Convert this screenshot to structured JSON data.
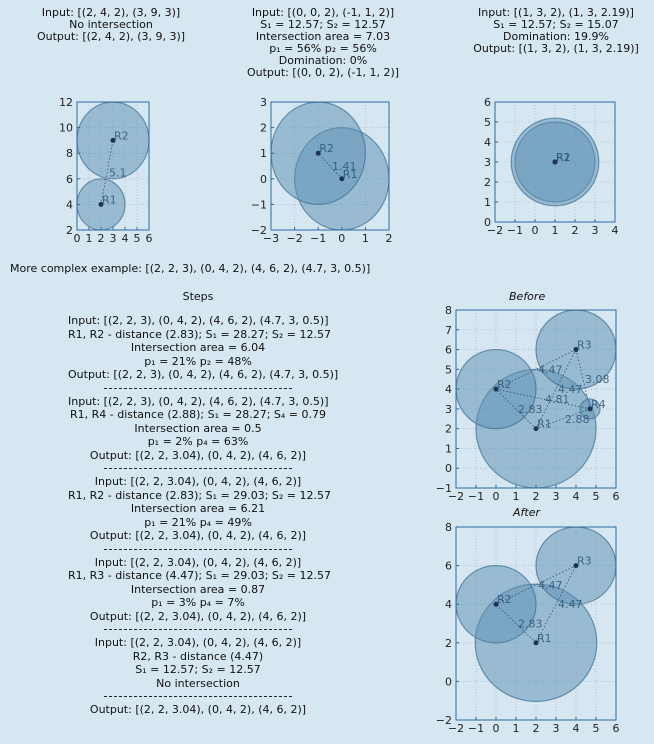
{
  "top_examples": [
    {
      "lines": [
        "Input: [(2, 4, 2), (3, 9, 3)]",
        "No intersection",
        "Output: [(2, 4, 2), (3, 9, 3)]"
      ]
    },
    {
      "lines": [
        "Input: [(0, 0, 2), (-1, 1, 2)]",
        "S₁ = 12.57; S₂ = 12.57",
        "Intersection area = 7.03",
        "p₁ = 56% p₂ = 56%",
        "Domination: 0%",
        "Output: [(0, 0, 2), (-1, 1, 2)]"
      ]
    },
    {
      "lines": [
        "Input: [(1, 3, 2), (1, 3, 2.19)]",
        "S₁ = 12.57; S₂ = 15.07",
        "Domination: 19.9%",
        "Output: [(1, 3, 2), (1, 3, 2.19)]"
      ]
    }
  ],
  "complex_example_label": "More complex example: [(2, 2, 3), (0, 4, 2), (4, 6, 2), (4.7, 3, 0.5)]",
  "steps_title": "Steps",
  "steps": [
    {
      "lines": [
        "Input: [(2, 2, 3), (0, 4, 2), (4, 6, 2), (4.7, 3, 0.5)]",
        "R1, R2 - distance (2.83); S₁ = 28.27; S₂ = 12.57",
        "Intersection area = 6.04",
        "p₁ = 21% p₂ = 48%",
        "Output: [(2, 2, 3), (0, 4, 2), (4, 6, 2), (4.7, 3, 0.5)]"
      ]
    },
    {
      "lines": [
        "Input: [(2, 2, 3), (0, 4, 2), (4, 6, 2), (4.7, 3, 0.5)]",
        "R1, R4 - distance (2.88); S₁ = 28.27; S₄ = 0.79",
        "Intersection area = 0.5",
        "p₁ = 2% p₄ = 63%",
        "Output: [(2, 2, 3.04), (0, 4, 2), (4, 6, 2)]"
      ]
    },
    {
      "lines": [
        "Input: [(2, 2, 3.04), (0, 4, 2), (4, 6, 2)]",
        "R1, R2 - distance (2.83); S₁ = 29.03; S₂ = 12.57",
        "Intersection area = 6.21",
        "p₁ = 21% p₄ = 49%",
        "Output: [(2, 2, 3.04), (0, 4, 2), (4, 6, 2)]"
      ]
    },
    {
      "lines": [
        "Input: [(2, 2, 3.04), (0, 4, 2), (4, 6, 2)]",
        "R1, R3 - distance (4.47); S₁ = 29.03; S₂ = 12.57",
        "Intersection area = 0.87",
        "p₁ = 3% p₄ = 7%",
        "Output: [(2, 2, 3.04), (0, 4, 2), (4, 6, 2)]"
      ]
    },
    {
      "lines": [
        "Input: [(2, 2, 3.04), (0, 4, 2), (4, 6, 2)]",
        "R2, R3 - distance (4.47)",
        "S₁ = 12.57; S₂ = 12.57",
        "No intersection"
      ]
    },
    {
      "lines": [
        "Output: [(2, 2, 3.04), (0, 4, 2), (4, 6, 2)]"
      ]
    }
  ],
  "before_title": "Before",
  "after_title": "After",
  "colors": {
    "circle_fill": "#5b8fb3",
    "circle_stroke": "#3f6f92",
    "background": "#d6e7f1",
    "axis": "#2a6aa0",
    "point": "#1d3550"
  },
  "plots": [
    {
      "name": "plot-top-1",
      "xlim": [
        0,
        6
      ],
      "ylim": [
        2,
        12
      ],
      "xticks": [
        0,
        1,
        2,
        3,
        4,
        5,
        6
      ],
      "yticks": [
        2,
        4,
        6,
        8,
        10,
        12
      ],
      "circles": [
        {
          "x": 2,
          "y": 4,
          "r": 2,
          "label": "R1"
        },
        {
          "x": 3,
          "y": 9,
          "r": 3,
          "label": "R2"
        }
      ],
      "distances": [
        {
          "from": 0,
          "to": 1,
          "label": "5.1"
        }
      ]
    },
    {
      "name": "plot-top-2",
      "xlim": [
        -3,
        2
      ],
      "ylim": [
        -2,
        3
      ],
      "xticks": [
        -3,
        -2,
        -1,
        0,
        1,
        2
      ],
      "yticks": [
        -2,
        -1,
        0,
        1,
        2,
        3
      ],
      "circles": [
        {
          "x": 0,
          "y": 0,
          "r": 2,
          "label": "R1"
        },
        {
          "x": -1,
          "y": 1,
          "r": 2,
          "label": "R2"
        }
      ],
      "distances": [
        {
          "from": 0,
          "to": 1,
          "label": "1.41"
        }
      ]
    },
    {
      "name": "plot-top-3",
      "xlim": [
        -2,
        4
      ],
      "ylim": [
        0,
        6
      ],
      "xticks": [
        -2,
        -1,
        0,
        1,
        2,
        3,
        4
      ],
      "yticks": [
        0,
        1,
        2,
        3,
        4,
        5,
        6
      ],
      "circles": [
        {
          "x": 1,
          "y": 3,
          "r": 2,
          "label": "R1"
        },
        {
          "x": 1,
          "y": 3,
          "r": 2.19,
          "label": "R2"
        }
      ],
      "distances": []
    },
    {
      "name": "plot-before",
      "xlim": [
        -2,
        6
      ],
      "ylim": [
        -1,
        8
      ],
      "xticks": [
        -2,
        -1,
        0,
        1,
        2,
        3,
        4,
        5,
        6
      ],
      "yticks": [
        -1,
        0,
        1,
        2,
        3,
        4,
        5,
        6,
        7,
        8
      ],
      "circles": [
        {
          "x": 2,
          "y": 2,
          "r": 3,
          "label": "R1"
        },
        {
          "x": 0,
          "y": 4,
          "r": 2,
          "label": "R2"
        },
        {
          "x": 4,
          "y": 6,
          "r": 2,
          "label": "R3"
        },
        {
          "x": 4.7,
          "y": 3,
          "r": 0.5,
          "label": "R4"
        }
      ],
      "distances": [
        {
          "from": 0,
          "to": 1,
          "label": "2.83"
        },
        {
          "from": 0,
          "to": 2,
          "label": "4.47"
        },
        {
          "from": 0,
          "to": 3,
          "label": "2.88"
        },
        {
          "from": 1,
          "to": 2,
          "label": "4.47"
        },
        {
          "from": 1,
          "to": 3,
          "label": "4.81"
        },
        {
          "from": 2,
          "to": 3,
          "label": "3.08"
        }
      ]
    },
    {
      "name": "plot-after",
      "xlim": [
        -2,
        6
      ],
      "ylim": [
        -2,
        8
      ],
      "xticks": [
        -2,
        -1,
        0,
        1,
        2,
        3,
        4,
        5,
        6
      ],
      "yticks": [
        -2,
        0,
        2,
        4,
        6,
        8
      ],
      "circles": [
        {
          "x": 2,
          "y": 2,
          "r": 3.04,
          "label": "R1"
        },
        {
          "x": 0,
          "y": 4,
          "r": 2,
          "label": "R2"
        },
        {
          "x": 4,
          "y": 6,
          "r": 2,
          "label": "R3"
        }
      ],
      "distances": [
        {
          "from": 0,
          "to": 1,
          "label": "2.83"
        },
        {
          "from": 0,
          "to": 2,
          "label": "4.47"
        },
        {
          "from": 1,
          "to": 2,
          "label": "4.47"
        }
      ]
    }
  ]
}
